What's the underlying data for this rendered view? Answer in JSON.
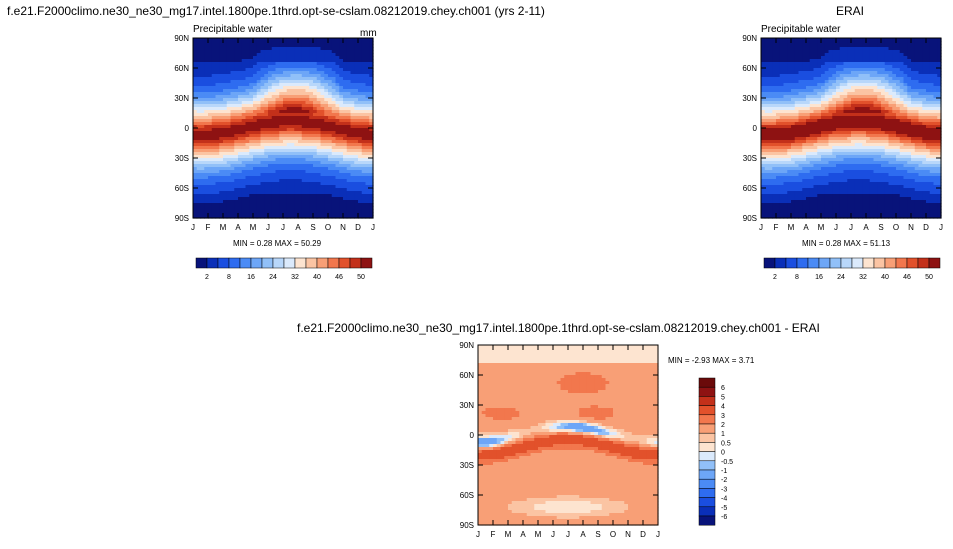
{
  "chart_data": [
    {
      "type": "heatmap",
      "title": "f.e21.F2000climo.ne30_ne30_mg17.intel.1800pe.1thrd.opt-se-cslam.08212019.chey.ch001 (yrs 2-11)",
      "subtitle": "Precipitable water",
      "units": "mm",
      "stats": "MIN =   0.28 MAX =  50.29",
      "x_ticks": [
        "J",
        "F",
        "M",
        "A",
        "M",
        "J",
        "J",
        "A",
        "S",
        "O",
        "N",
        "D",
        "J"
      ],
      "y_ticks": [
        "90N",
        "60N",
        "30N",
        "0",
        "30S",
        "60S",
        "90S"
      ],
      "y_values": [
        90,
        60,
        30,
        0,
        -30,
        -60,
        -90
      ],
      "x_range": [
        0,
        12
      ],
      "levels": [
        2,
        5,
        8,
        12,
        16,
        20,
        24,
        28,
        32,
        36,
        40,
        43,
        46,
        48,
        50
      ],
      "colorbar_labels": [
        "2",
        "8",
        "16",
        "24",
        "32",
        "40",
        "46",
        "50"
      ],
      "colors": [
        "#08137a",
        "#0a2fb8",
        "#1a4ee0",
        "#2e6cf0",
        "#4b8bf5",
        "#6da6f7",
        "#91c0f8",
        "#b8d7fa",
        "#dbeafc",
        "#fde4d0",
        "#fbc4a3",
        "#f89f76",
        "#f2774d",
        "#e2512b",
        "#c3301a",
        "#8e1212"
      ]
    },
    {
      "type": "heatmap",
      "title": "ERAI",
      "subtitle": "Precipitable water",
      "stats": "MIN =   0.28 MAX =  51.13",
      "x_ticks": [
        "J",
        "F",
        "M",
        "A",
        "M",
        "J",
        "J",
        "A",
        "S",
        "O",
        "N",
        "D",
        "J"
      ],
      "y_ticks": [
        "90N",
        "60N",
        "30N",
        "0",
        "30S",
        "60S",
        "90S"
      ],
      "y_values": [
        90,
        60,
        30,
        0,
        -30,
        -60,
        -90
      ],
      "x_range": [
        0,
        12
      ],
      "levels": [
        2,
        5,
        8,
        12,
        16,
        20,
        24,
        28,
        32,
        36,
        40,
        43,
        46,
        48,
        50
      ],
      "colorbar_labels": [
        "2",
        "8",
        "16",
        "24",
        "32",
        "40",
        "46",
        "50"
      ]
    },
    {
      "type": "heatmap",
      "title": "f.e21.F2000climo.ne30_ne30_mg17.intel.1800pe.1thrd.opt-se-cslam.08212019.chey.ch001 - ERAI",
      "stats": "MIN =  -2.93 MAX =   3.71",
      "x_ticks": [
        "J",
        "F",
        "M",
        "A",
        "M",
        "J",
        "J",
        "A",
        "S",
        "O",
        "N",
        "D",
        "J"
      ],
      "y_ticks": [
        "90N",
        "60N",
        "30N",
        "0",
        "30S",
        "60S",
        "90S"
      ],
      "y_values": [
        90,
        60,
        30,
        0,
        -30,
        -60,
        -90
      ],
      "x_range": [
        0,
        12
      ],
      "levels": [
        -6,
        -5,
        -4,
        -3,
        -2,
        -1,
        -0.5,
        0,
        0.5,
        1,
        2,
        3,
        4,
        5,
        6
      ],
      "colorbar_labels": [
        "6",
        "5",
        "4",
        "3",
        "2",
        "1",
        "0.5",
        "0",
        "-0.5",
        "-1",
        "-2",
        "-3",
        "-4",
        "-5",
        "-6"
      ],
      "colors": [
        "#08137a",
        "#0a2fb8",
        "#1a4ee0",
        "#2e6cf0",
        "#4b8bf5",
        "#6da6f7",
        "#91c0f8",
        "#dbeafc",
        "#fde4d0",
        "#fbc4a3",
        "#f89f76",
        "#f2774d",
        "#e2512b",
        "#c3301a",
        "#8e1212",
        "#6b0a0a"
      ]
    }
  ]
}
